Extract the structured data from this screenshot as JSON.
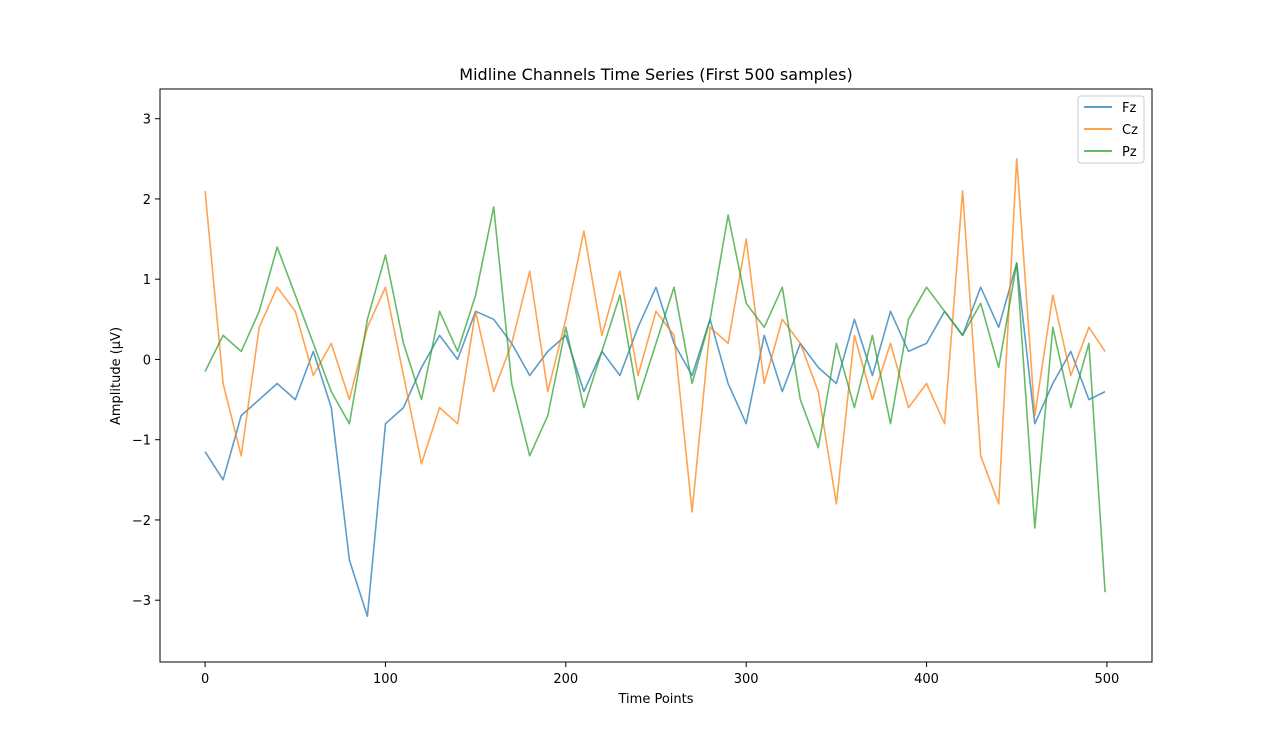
{
  "chart_data": {
    "type": "line",
    "title": "Midline Channels Time Series (First 500 samples)",
    "xlabel": "Time Points",
    "ylabel": "Amplitude (µV)",
    "xlim": [
      -25,
      525
    ],
    "ylim": [
      -3.77,
      3.37
    ],
    "xticks": [
      0,
      100,
      200,
      300,
      400,
      500
    ],
    "xtick_labels": [
      "0",
      "100",
      "200",
      "300",
      "400",
      "500"
    ],
    "yticks": [
      -3,
      -2,
      -1,
      0,
      1,
      2,
      3
    ],
    "ytick_labels": [
      "−3",
      "−2",
      "−1",
      "0",
      "1",
      "2",
      "3"
    ],
    "grid": false,
    "legend_position": "top-right",
    "x": [
      0,
      10,
      20,
      30,
      40,
      50,
      60,
      70,
      80,
      90,
      100,
      110,
      120,
      130,
      140,
      150,
      160,
      170,
      180,
      190,
      200,
      210,
      220,
      230,
      240,
      250,
      260,
      270,
      280,
      290,
      300,
      310,
      320,
      330,
      340,
      350,
      360,
      370,
      380,
      390,
      400,
      410,
      420,
      430,
      440,
      450,
      460,
      470,
      480,
      490,
      499
    ],
    "series": [
      {
        "name": "Fz",
        "color": "#1f77b4",
        "values": [
          -1.15,
          -1.5,
          -0.7,
          -0.5,
          -0.3,
          -0.5,
          0.1,
          -0.6,
          -2.5,
          -3.2,
          -0.8,
          -0.6,
          -0.1,
          0.3,
          0.0,
          0.6,
          0.5,
          0.2,
          -0.2,
          0.1,
          0.3,
          -0.4,
          0.1,
          -0.2,
          0.4,
          0.9,
          0.2,
          -0.2,
          0.5,
          -0.3,
          -0.8,
          0.3,
          -0.4,
          0.2,
          -0.1,
          -0.3,
          0.5,
          -0.2,
          0.6,
          0.1,
          0.2,
          0.6,
          0.3,
          0.9,
          0.4,
          1.2,
          -0.8,
          -0.3,
          0.1,
          -0.5,
          -0.4
        ]
      },
      {
        "name": "Cz",
        "color": "#ff7f0e",
        "values": [
          2.1,
          -0.3,
          -1.2,
          0.4,
          0.9,
          0.6,
          -0.2,
          0.2,
          -0.5,
          0.4,
          0.9,
          -0.2,
          -1.3,
          -0.6,
          -0.8,
          0.6,
          -0.4,
          0.2,
          1.1,
          -0.4,
          0.5,
          1.6,
          0.3,
          1.1,
          -0.2,
          0.6,
          0.3,
          -1.9,
          0.4,
          0.2,
          1.5,
          -0.3,
          0.5,
          0.2,
          -0.4,
          -1.8,
          0.3,
          -0.5,
          0.2,
          -0.6,
          -0.3,
          -0.8,
          2.1,
          -1.2,
          -1.8,
          2.5,
          -0.7,
          0.8,
          -0.2,
          0.4,
          0.1
        ]
      },
      {
        "name": "Pz",
        "color": "#2ca02c",
        "values": [
          -0.15,
          0.3,
          0.1,
          0.6,
          1.4,
          0.8,
          0.2,
          -0.4,
          -0.8,
          0.5,
          1.3,
          0.2,
          -0.5,
          0.6,
          0.1,
          0.8,
          1.9,
          -0.3,
          -1.2,
          -0.7,
          0.4,
          -0.6,
          0.1,
          0.8,
          -0.5,
          0.2,
          0.9,
          -0.3,
          0.5,
          1.8,
          0.7,
          0.4,
          0.9,
          -0.5,
          -1.1,
          0.2,
          -0.6,
          0.3,
          -0.8,
          0.5,
          0.9,
          0.6,
          0.3,
          0.7,
          -0.1,
          1.2,
          -2.1,
          0.4,
          -0.6,
          0.2,
          -2.9
        ]
      }
    ]
  }
}
